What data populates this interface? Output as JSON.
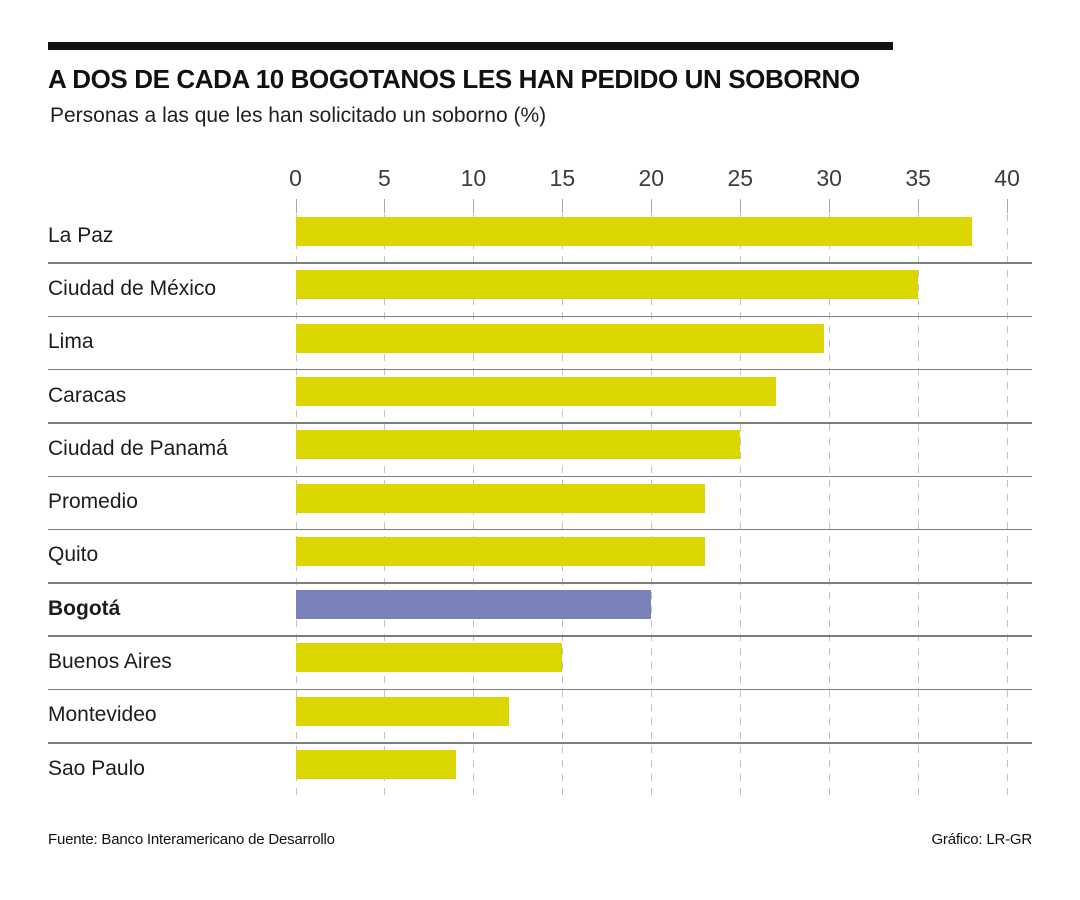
{
  "header": {
    "title": "A DOS DE CADA 10 BOGOTANOS LES HAN PEDIDO UN SOBORNO",
    "subtitle": "Personas a las que les han solicitado un soborno (%)"
  },
  "footer": {
    "source": "Fuente: Banco Interamericano de Desarrollo",
    "credit": "Gráfico: LR-GR"
  },
  "chart_data": {
    "type": "bar",
    "orientation": "horizontal",
    "title": "A DOS DE CADA 10 BOGOTANOS LES HAN PEDIDO UN SOBORNO",
    "subtitle": "Personas a las que les han solicitado un soborno (%)",
    "unit": "%",
    "categories": [
      "La Paz",
      "Ciudad de México",
      "Lima",
      "Caracas",
      "Ciudad de Panamá",
      "Promedio",
      "Quito",
      "Bogotá",
      "Buenos Aires",
      "Montevideo",
      "Sao Paulo"
    ],
    "values": [
      38,
      35,
      29.7,
      27,
      25,
      23,
      23,
      20,
      15,
      12,
      9
    ],
    "highlight_category": "Bogotá",
    "xlim": [
      0,
      40
    ],
    "xticks": [
      0,
      5,
      10,
      15,
      20,
      25,
      30,
      35,
      40
    ],
    "grid": "vertical-dashed",
    "legend": "none",
    "colors": {
      "bar": "#dcd600",
      "highlight": "#7a80b8"
    }
  }
}
